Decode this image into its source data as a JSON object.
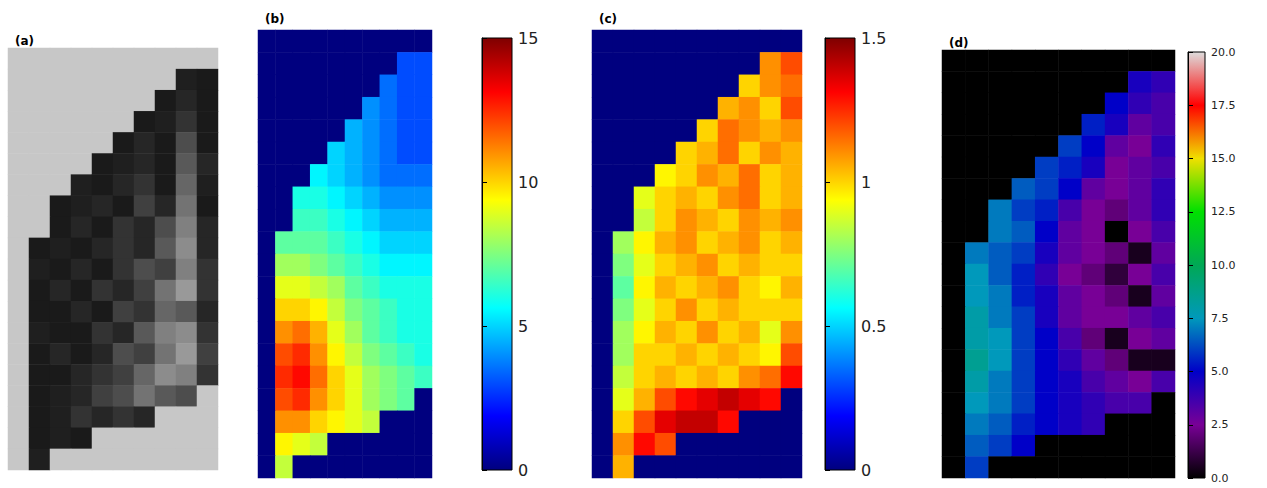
{
  "chart_data": [
    {
      "type": "heatmap",
      "title": "(a)",
      "tick_labels": false,
      "color_scale": {
        "range": [
          0,
          1
        ],
        "colors": [
          "#000000",
          "#ffffff"
        ]
      },
      "values": [
        [
          0.78,
          0.78,
          0.78,
          0.78,
          0.78,
          0.78,
          0.78,
          0.78,
          0.78,
          0.78
        ],
        [
          0.78,
          0.78,
          0.78,
          0.78,
          0.78,
          0.78,
          0.78,
          0.78,
          0.12,
          0.1
        ],
        [
          0.78,
          0.78,
          0.78,
          0.78,
          0.78,
          0.78,
          0.78,
          0.1,
          0.15,
          0.1
        ],
        [
          0.78,
          0.78,
          0.78,
          0.78,
          0.78,
          0.78,
          0.1,
          0.12,
          0.2,
          0.1
        ],
        [
          0.78,
          0.78,
          0.78,
          0.78,
          0.78,
          0.1,
          0.15,
          0.1,
          0.3,
          0.1
        ],
        [
          0.78,
          0.78,
          0.78,
          0.78,
          0.1,
          0.12,
          0.15,
          0.1,
          0.35,
          0.15
        ],
        [
          0.78,
          0.78,
          0.78,
          0.12,
          0.1,
          0.15,
          0.2,
          0.1,
          0.4,
          0.12
        ],
        [
          0.78,
          0.78,
          0.1,
          0.12,
          0.15,
          0.1,
          0.25,
          0.15,
          0.45,
          0.1
        ],
        [
          0.78,
          0.78,
          0.1,
          0.15,
          0.1,
          0.2,
          0.15,
          0.3,
          0.5,
          0.15
        ],
        [
          0.78,
          0.1,
          0.12,
          0.1,
          0.15,
          0.2,
          0.15,
          0.35,
          0.55,
          0.15
        ],
        [
          0.78,
          0.12,
          0.1,
          0.15,
          0.1,
          0.2,
          0.3,
          0.25,
          0.5,
          0.2
        ],
        [
          0.78,
          0.1,
          0.15,
          0.1,
          0.2,
          0.15,
          0.25,
          0.45,
          0.6,
          0.2
        ],
        [
          0.78,
          0.1,
          0.1,
          0.15,
          0.1,
          0.25,
          0.2,
          0.4,
          0.35,
          0.15
        ],
        [
          0.78,
          0.12,
          0.1,
          0.1,
          0.2,
          0.15,
          0.35,
          0.5,
          0.55,
          0.2
        ],
        [
          0.78,
          0.1,
          0.15,
          0.1,
          0.15,
          0.3,
          0.25,
          0.45,
          0.6,
          0.25
        ],
        [
          0.78,
          0.1,
          0.1,
          0.15,
          0.2,
          0.25,
          0.4,
          0.55,
          0.5,
          0.2
        ],
        [
          0.78,
          0.1,
          0.12,
          0.15,
          0.25,
          0.3,
          0.45,
          0.35,
          0.3,
          0.78
        ],
        [
          0.78,
          0.1,
          0.12,
          0.2,
          0.15,
          0.2,
          0.15,
          0.78,
          0.78,
          0.78
        ],
        [
          0.78,
          0.1,
          0.12,
          0.1,
          0.78,
          0.78,
          0.78,
          0.78,
          0.78,
          0.78
        ],
        [
          0.78,
          0.12,
          0.78,
          0.78,
          0.78,
          0.78,
          0.78,
          0.78,
          0.78,
          0.78
        ]
      ]
    },
    {
      "type": "heatmap",
      "title": "(b)",
      "tick_labels": false,
      "colorbar": {
        "range": [
          0,
          15
        ],
        "ticks": [
          0,
          5,
          10,
          15
        ],
        "colors": [
          "#00007f",
          "#0000ff",
          "#007fff",
          "#00ffff",
          "#7fff7f",
          "#ffff00",
          "#ff7f00",
          "#ff0000",
          "#7f0000"
        ]
      },
      "values": [
        [
          0,
          0,
          0,
          0,
          0,
          0,
          0,
          0,
          0,
          0
        ],
        [
          0,
          0,
          0,
          0,
          0,
          0,
          0,
          0,
          3,
          3
        ],
        [
          0,
          0,
          0,
          0,
          0,
          0,
          0,
          3.5,
          3,
          3
        ],
        [
          0,
          0,
          0,
          0,
          0,
          0,
          4,
          3.5,
          3,
          3
        ],
        [
          0,
          0,
          0,
          0,
          0,
          4.5,
          4,
          3.5,
          3,
          3
        ],
        [
          0,
          0,
          0,
          0,
          5,
          4.5,
          4,
          3.5,
          3,
          3
        ],
        [
          0,
          0,
          0,
          5.5,
          5,
          4.5,
          4,
          3.5,
          3.5,
          3.5
        ],
        [
          0,
          0,
          6,
          6,
          5.5,
          5,
          4.5,
          4,
          4,
          4
        ],
        [
          0,
          0,
          6.5,
          6.5,
          6,
          5.5,
          5,
          4.5,
          4.5,
          4.5
        ],
        [
          0,
          7,
          7,
          7,
          6.5,
          6,
          5.5,
          5,
          5,
          5
        ],
        [
          0,
          8,
          8,
          7.5,
          7,
          6.5,
          6,
          5.5,
          5.5,
          5.5
        ],
        [
          0,
          9,
          9,
          8.5,
          8,
          7,
          6.5,
          6,
          6,
          6
        ],
        [
          0,
          10,
          10,
          9.5,
          8.5,
          7.5,
          7,
          6.5,
          6,
          6
        ],
        [
          0,
          11,
          11.5,
          10.5,
          9,
          8,
          7,
          6.5,
          6,
          6
        ],
        [
          0,
          12,
          12.5,
          11,
          9.5,
          8.5,
          7.5,
          7,
          6.5,
          6
        ],
        [
          0,
          12.5,
          13,
          11.5,
          10,
          9,
          8,
          7.5,
          7,
          6.5
        ],
        [
          0,
          12,
          12.5,
          11,
          10,
          9,
          8,
          7.5,
          7,
          0
        ],
        [
          0,
          11,
          11,
          10,
          9.5,
          9,
          8.5,
          0,
          0,
          0
        ],
        [
          0,
          9.5,
          9,
          8.5,
          0,
          0,
          0,
          0,
          0,
          0
        ],
        [
          0,
          8.5,
          0,
          0,
          0,
          0,
          0,
          0,
          0,
          0
        ]
      ]
    },
    {
      "type": "heatmap",
      "title": "(c)",
      "tick_labels": false,
      "colorbar": {
        "range": [
          0,
          1.5
        ],
        "ticks": [
          0,
          0.5,
          1,
          1.5
        ],
        "colors": [
          "#00007f",
          "#0000ff",
          "#007fff",
          "#00ffff",
          "#7fff7f",
          "#ffff00",
          "#ff7f00",
          "#ff0000",
          "#7f0000"
        ]
      },
      "values": [
        [
          0,
          0,
          0,
          0,
          0,
          0,
          0,
          0,
          0,
          0
        ],
        [
          0,
          0,
          0,
          0,
          0,
          0,
          0,
          0,
          1.1,
          1.2
        ],
        [
          0,
          0,
          0,
          0,
          0,
          0,
          0,
          1.0,
          1.1,
          1.15
        ],
        [
          0,
          0,
          0,
          0,
          0,
          0,
          1.05,
          1.1,
          1.0,
          1.2
        ],
        [
          0,
          0,
          0,
          0,
          0,
          1.0,
          1.15,
          1.1,
          1.05,
          1.1
        ],
        [
          0,
          0,
          0,
          0,
          1.0,
          1.05,
          1.15,
          1.0,
          1.1,
          1.05
        ],
        [
          0,
          0,
          0,
          0.95,
          1.0,
          1.1,
          1.05,
          1.15,
          1.0,
          1.05
        ],
        [
          0,
          0,
          0.9,
          1.0,
          1.05,
          1.0,
          1.1,
          1.15,
          1.0,
          1.05
        ],
        [
          0,
          0,
          0.85,
          1.0,
          1.1,
          1.05,
          1.0,
          1.1,
          1.05,
          1.1
        ],
        [
          0,
          0.8,
          0.95,
          1.05,
          1.1,
          1.0,
          1.05,
          1.1,
          1.0,
          1.05
        ],
        [
          0,
          0.75,
          0.9,
          1.0,
          1.05,
          1.1,
          1.0,
          1.05,
          1.0,
          1.0
        ],
        [
          0,
          0.7,
          0.95,
          1.05,
          1.0,
          1.05,
          1.1,
          1.0,
          0.95,
          1.05
        ],
        [
          0,
          0.75,
          0.9,
          1.0,
          1.1,
          1.0,
          1.05,
          1.0,
          1.0,
          1.0
        ],
        [
          0,
          0.8,
          0.95,
          1.05,
          1.0,
          1.1,
          1.0,
          1.05,
          0.9,
          1.1
        ],
        [
          0,
          0.8,
          1.0,
          1.0,
          1.05,
          1.0,
          1.05,
          1.0,
          0.95,
          1.2
        ],
        [
          0,
          0.85,
          1.0,
          1.05,
          1.0,
          1.05,
          1.0,
          1.1,
          1.15,
          1.3
        ],
        [
          0,
          0.9,
          1.05,
          1.2,
          1.3,
          1.35,
          1.4,
          1.35,
          1.3,
          0
        ],
        [
          0,
          1.0,
          1.2,
          1.35,
          1.4,
          1.4,
          1.3,
          0,
          0,
          0
        ],
        [
          0,
          1.1,
          1.3,
          1.2,
          0,
          0,
          0,
          0,
          0,
          0
        ],
        [
          0,
          1.05,
          0,
          0,
          0,
          0,
          0,
          0,
          0,
          0
        ]
      ]
    },
    {
      "type": "heatmap",
      "title": "(d)",
      "tick_labels": false,
      "colorbar": {
        "range": [
          0,
          20
        ],
        "ticks": [
          {
            "value": 0,
            "label": "0.0"
          },
          {
            "value": 2.5,
            "label": "2.5"
          },
          {
            "value": 5,
            "label": "5.0"
          },
          {
            "value": 7.5,
            "label": "7.5"
          },
          {
            "value": 10,
            "label": "10.0"
          },
          {
            "value": 12.5,
            "label": "12.5"
          },
          {
            "value": 15,
            "label": "15.0"
          },
          {
            "value": 17.5,
            "label": "17.5"
          },
          {
            "value": 20,
            "label": "20.0"
          }
        ],
        "colors": [
          "#000000",
          "#780096",
          "#0000c8",
          "#0099bb",
          "#00a855",
          "#00e000",
          "#f0e000",
          "#ff0000",
          "#dddddd"
        ]
      },
      "values": [
        [
          0,
          0,
          0,
          0,
          0,
          0,
          0,
          0,
          0,
          0
        ],
        [
          0,
          0,
          0,
          0,
          0,
          0,
          0,
          0,
          4.5,
          4
        ],
        [
          0,
          0,
          0,
          0,
          0,
          0,
          0,
          5,
          4,
          3.5
        ],
        [
          0,
          0,
          0,
          0,
          0,
          0,
          5.5,
          4.5,
          3,
          3.5
        ],
        [
          0,
          0,
          0,
          0,
          0,
          6,
          5,
          3,
          2.5,
          4
        ],
        [
          0,
          0,
          0,
          0,
          6,
          5.5,
          4.5,
          2.5,
          3,
          3.5
        ],
        [
          0,
          0,
          0,
          6.5,
          6,
          5,
          3,
          2.5,
          3,
          4
        ],
        [
          0,
          0,
          7,
          6,
          5.5,
          3.5,
          2.5,
          2,
          3,
          4
        ],
        [
          0,
          0,
          7,
          6.5,
          5,
          3,
          2.5,
          0,
          2.5,
          3.5
        ],
        [
          0,
          7,
          6.5,
          6,
          4.5,
          3,
          2.5,
          2,
          0.5,
          3
        ],
        [
          0,
          7.5,
          6.5,
          5.5,
          4,
          2.5,
          2,
          1,
          2.5,
          3.5
        ],
        [
          0,
          7.5,
          7,
          5.5,
          4.5,
          3,
          2.5,
          2,
          0.5,
          3
        ],
        [
          0,
          8,
          7,
          6,
          4.5,
          3,
          2.5,
          2.5,
          3,
          3.5
        ],
        [
          0,
          8,
          7.5,
          6,
          5,
          3.5,
          2,
          0.5,
          2.5,
          3
        ],
        [
          0,
          8.5,
          7.5,
          6,
          5,
          4,
          3,
          2,
          0.5,
          0.5
        ],
        [
          0,
          8,
          7,
          6,
          5,
          4.5,
          3.5,
          3,
          2.5,
          3.5
        ],
        [
          0,
          7.5,
          7,
          6,
          5,
          4.5,
          4,
          3.5,
          3.5,
          0
        ],
        [
          0,
          7,
          6.5,
          5.5,
          5,
          4.5,
          4,
          0,
          0,
          0
        ],
        [
          0,
          6.5,
          6,
          5,
          0,
          0,
          0,
          0,
          0,
          0
        ],
        [
          0,
          6,
          0,
          0,
          0,
          0,
          0,
          0,
          0,
          0
        ]
      ]
    }
  ]
}
